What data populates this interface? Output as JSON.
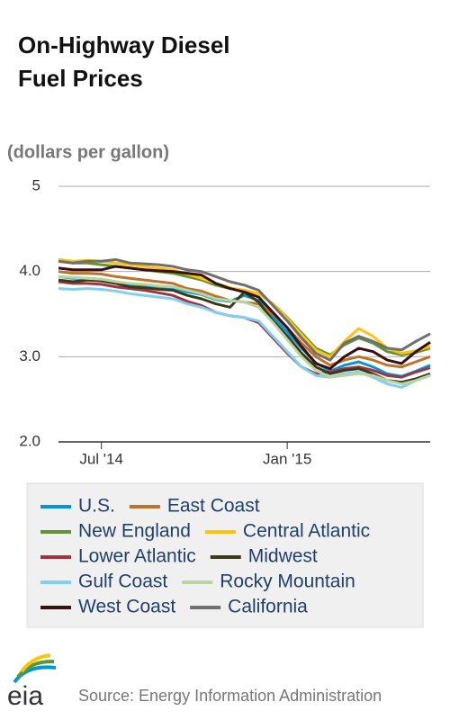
{
  "chart_data": {
    "type": "line",
    "title": [
      "On-Highway Diesel",
      "Fuel Prices"
    ],
    "y_label": "(dollars per gallon)",
    "categories": [
      null,
      null,
      null,
      "Jul '14",
      null,
      null,
      null,
      null,
      null,
      null,
      null,
      null,
      null,
      null,
      null,
      null,
      "Jan '15",
      null,
      null,
      null,
      null,
      null,
      null,
      null,
      null,
      null,
      null
    ],
    "ylim": [
      2,
      5
    ],
    "yticks": [
      {
        "value": 2,
        "label": "2.0"
      },
      {
        "value": 3,
        "label": "3.0"
      },
      {
        "value": 4,
        "label": "4.0"
      },
      5
    ],
    "grid": true,
    "series": [
      {
        "name": "U.S.",
        "color": "#0096d7",
        "values": [
          3.94,
          3.92,
          3.92,
          3.91,
          3.88,
          3.85,
          3.84,
          3.82,
          3.81,
          3.76,
          3.73,
          3.67,
          3.65,
          3.72,
          3.66,
          3.46,
          3.29,
          3.1,
          2.93,
          2.83,
          2.9,
          2.94,
          2.88,
          2.8,
          2.77,
          2.83,
          2.9
        ]
      },
      {
        "name": "East Coast",
        "color": "#bd732a",
        "values": [
          4.0,
          3.98,
          3.98,
          3.97,
          3.94,
          3.92,
          3.9,
          3.88,
          3.86,
          3.8,
          3.77,
          3.71,
          3.66,
          3.64,
          3.62,
          3.5,
          3.34,
          3.16,
          3.0,
          2.9,
          2.96,
          3.0,
          2.96,
          2.9,
          2.88,
          2.94,
          3.0
        ]
      },
      {
        "name": "New England",
        "color": "#5d9732",
        "values": [
          4.12,
          4.1,
          4.1,
          4.08,
          4.06,
          4.04,
          4.02,
          4.0,
          3.98,
          3.94,
          3.9,
          3.84,
          3.8,
          3.78,
          3.74,
          3.62,
          3.46,
          3.28,
          3.1,
          3.02,
          3.14,
          3.22,
          3.16,
          3.06,
          3.02,
          3.05,
          3.1
        ]
      },
      {
        "name": "Central Atlantic",
        "color": "#ffc20e",
        "values": [
          4.14,
          4.12,
          4.13,
          4.12,
          4.1,
          4.08,
          4.06,
          4.04,
          4.02,
          3.97,
          3.92,
          3.86,
          3.81,
          3.78,
          3.74,
          3.62,
          3.45,
          3.26,
          3.08,
          3.0,
          3.18,
          3.33,
          3.24,
          3.1,
          3.04,
          3.07,
          3.12
        ]
      },
      {
        "name": "Lower Atlantic",
        "color": "#a33340",
        "values": [
          3.88,
          3.86,
          3.86,
          3.85,
          3.82,
          3.8,
          3.78,
          3.75,
          3.72,
          3.65,
          3.6,
          3.52,
          3.48,
          3.46,
          3.4,
          3.22,
          3.04,
          2.88,
          2.8,
          2.82,
          2.86,
          2.88,
          2.84,
          2.78,
          2.76,
          2.82,
          2.87
        ]
      },
      {
        "name": "Midwest",
        "color": "#3b3a16",
        "values": [
          3.9,
          3.88,
          3.9,
          3.89,
          3.86,
          3.82,
          3.81,
          3.79,
          3.78,
          3.72,
          3.68,
          3.62,
          3.58,
          3.76,
          3.64,
          3.42,
          3.24,
          3.04,
          2.88,
          2.8,
          2.84,
          2.86,
          2.8,
          2.72,
          2.7,
          2.74,
          2.8
        ]
      },
      {
        "name": "Gulf Coast",
        "color": "#7fd0f2",
        "values": [
          3.8,
          3.79,
          3.8,
          3.79,
          3.77,
          3.74,
          3.72,
          3.7,
          3.68,
          3.62,
          3.58,
          3.52,
          3.48,
          3.46,
          3.42,
          3.24,
          3.06,
          2.88,
          2.78,
          2.76,
          2.8,
          2.82,
          2.76,
          2.68,
          2.64,
          2.72,
          2.78
        ]
      },
      {
        "name": "Rocky Mountain",
        "color": "#b9d4a0",
        "values": [
          3.94,
          3.93,
          3.92,
          3.91,
          3.88,
          3.86,
          3.85,
          3.83,
          3.82,
          3.78,
          3.74,
          3.68,
          3.66,
          3.64,
          3.58,
          3.4,
          3.2,
          3.0,
          2.84,
          2.76,
          2.78,
          2.8,
          2.78,
          2.72,
          2.68,
          2.72,
          2.78
        ]
      },
      {
        "name": "West Coast",
        "color": "#3a0f0f",
        "values": [
          4.04,
          4.02,
          4.02,
          4.02,
          4.06,
          4.04,
          4.02,
          4.01,
          4.0,
          3.98,
          3.96,
          3.86,
          3.8,
          3.76,
          3.7,
          3.52,
          3.34,
          3.12,
          2.92,
          2.86,
          3.0,
          3.1,
          3.06,
          2.96,
          2.92,
          3.06,
          3.17
        ]
      },
      {
        "name": "California",
        "color": "#6f6f6f",
        "values": [
          4.12,
          4.1,
          4.12,
          4.12,
          4.14,
          4.1,
          4.09,
          4.08,
          4.06,
          4.02,
          4.0,
          3.94,
          3.88,
          3.84,
          3.78,
          3.6,
          3.42,
          3.22,
          3.04,
          2.96,
          3.16,
          3.24,
          3.18,
          3.1,
          3.08,
          3.18,
          3.27
        ]
      }
    ]
  },
  "logo_text": "eia",
  "source": "Source: Energy Information Administration"
}
